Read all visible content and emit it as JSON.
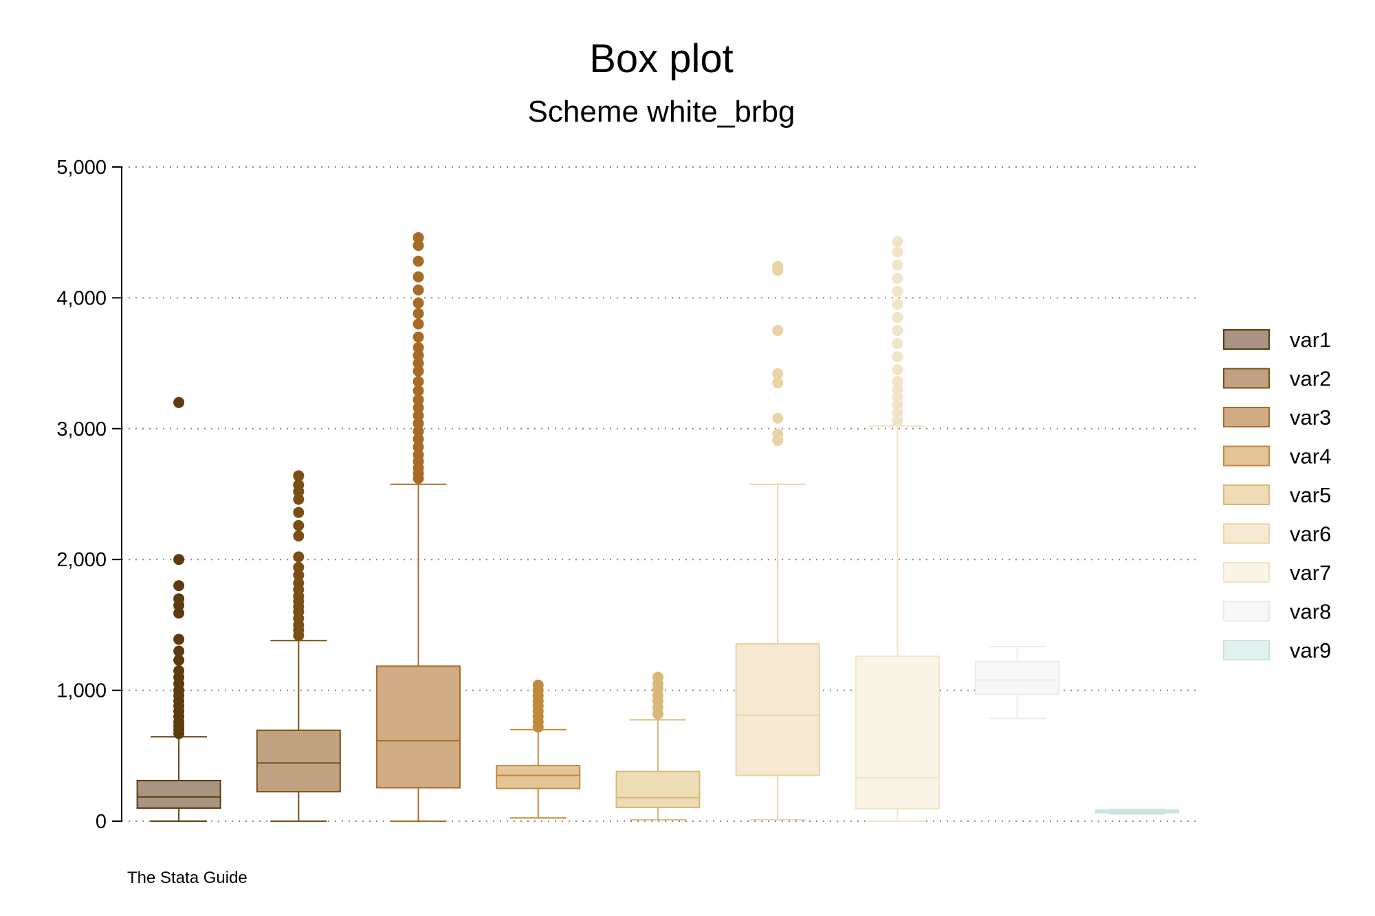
{
  "chart_data": {
    "type": "box",
    "title": "Box plot",
    "subtitle": "Scheme white_brbg",
    "note": "The Stata Guide",
    "ylim": [
      0,
      5000
    ],
    "yticks": [
      0,
      1000,
      2000,
      3000,
      4000,
      5000
    ],
    "ytick_labels": [
      "0",
      "1,000",
      "2,000",
      "3,000",
      "4,000",
      "5,000"
    ],
    "grid": true,
    "legend_position": "right",
    "series": [
      {
        "name": "var1",
        "fill": "#a89480",
        "stroke": "#5c3c10",
        "whisker_low": 0,
        "q1": 100,
        "median": 185,
        "q3": 310,
        "whisker_high": 645,
        "outliers": [
          670,
          700,
          730,
          760,
          800,
          840,
          880,
          920,
          960,
          1000,
          1050,
          1100,
          1150,
          1230,
          1300,
          1390,
          1590,
          1650,
          1700,
          1800,
          2000,
          3200
        ]
      },
      {
        "name": "var2",
        "fill": "#c0a282",
        "stroke": "#7a4f16",
        "whisker_low": 0,
        "q1": 225,
        "median": 445,
        "q3": 695,
        "whisker_high": 1380,
        "outliers": [
          1420,
          1460,
          1500,
          1550,
          1600,
          1640,
          1680,
          1720,
          1770,
          1820,
          1880,
          1940,
          2020,
          2180,
          2260,
          2360,
          2460,
          2520,
          2570,
          2640
        ]
      },
      {
        "name": "var3",
        "fill": "#cfac84",
        "stroke": "#a86b25",
        "whisker_low": 0,
        "q1": 255,
        "median": 615,
        "q3": 1185,
        "whisker_high": 2575,
        "outliers": [
          2620,
          2660,
          2700,
          2750,
          2800,
          2860,
          2920,
          2980,
          3040,
          3100,
          3160,
          3220,
          3290,
          3360,
          3440,
          3500,
          3560,
          3620,
          3700,
          3800,
          3880,
          3960,
          4060,
          4160,
          4280,
          4400,
          4460
        ]
      },
      {
        "name": "var4",
        "fill": "#e4c598",
        "stroke": "#c08a3d",
        "whisker_low": 25,
        "q1": 250,
        "median": 350,
        "q3": 425,
        "whisker_high": 700,
        "outliers": [
          720,
          760,
          800,
          840,
          880,
          920,
          960,
          1000,
          1040
        ]
      },
      {
        "name": "var5",
        "fill": "#eddcb6",
        "stroke": "#d9b878",
        "whisker_low": 10,
        "q1": 105,
        "median": 180,
        "q3": 380,
        "whisker_high": 775,
        "outliers": [
          820,
          870,
          920,
          960,
          1010,
          1050,
          1100
        ]
      },
      {
        "name": "var6",
        "fill": "#f5e9d2",
        "stroke": "#ead3a5",
        "whisker_low": 10,
        "q1": 350,
        "median": 810,
        "q3": 1355,
        "whisker_high": 2575,
        "outliers": [
          2910,
          2960,
          3080,
          3350,
          3420,
          3750,
          4210,
          4240
        ]
      },
      {
        "name": "var7",
        "fill": "#faf4e7",
        "stroke": "#f1e4c8",
        "whisker_low": 0,
        "q1": 95,
        "median": 330,
        "q3": 1260,
        "whisker_high": 3020,
        "outliers": [
          3060,
          3120,
          3180,
          3240,
          3300,
          3360,
          3450,
          3550,
          3650,
          3750,
          3850,
          3950,
          4050,
          4150,
          4250,
          4350,
          4430
        ]
      },
      {
        "name": "var8",
        "fill": "#f8f8f8",
        "stroke": "#eaeaea",
        "whisker_low": 785,
        "q1": 970,
        "median": 1080,
        "q3": 1220,
        "whisker_high": 1335,
        "outliers": []
      },
      {
        "name": "var9",
        "fill": "#e3f1ee",
        "stroke": "#c8e4de",
        "whisker_low": 55,
        "q1": 65,
        "median": 72,
        "q3": 85,
        "whisker_high": 90,
        "outliers": []
      }
    ]
  }
}
